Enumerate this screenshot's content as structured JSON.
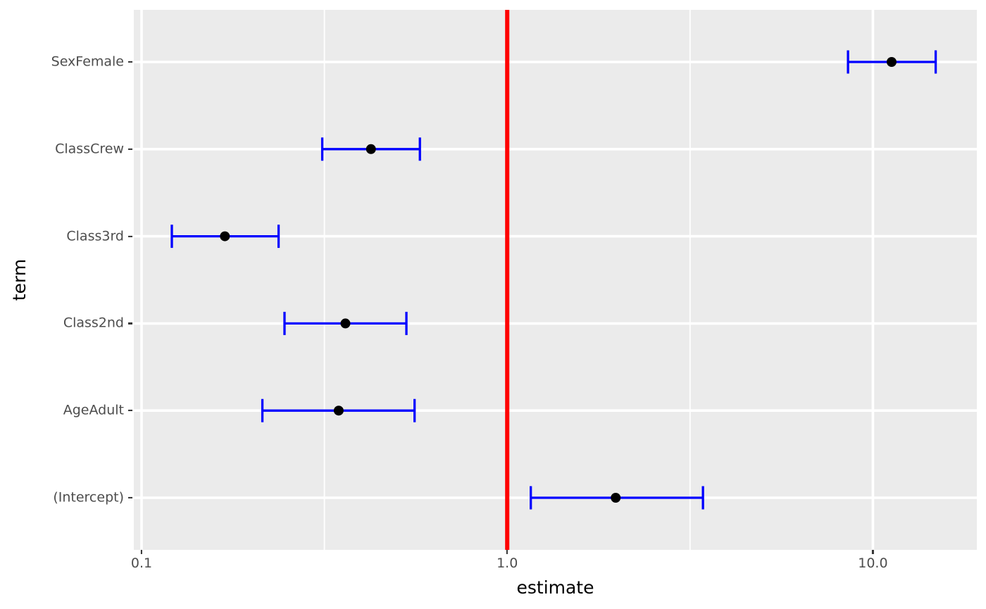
{
  "chart_data": {
    "type": "scatter",
    "subtype": "forest-plot-horizontal-errorbars",
    "title": "",
    "xlabel": "estimate",
    "ylabel": "term",
    "x_scale": "log10",
    "xlim": [
      0.095,
      19.2
    ],
    "x_ticks": [
      0.1,
      1.0,
      10.0
    ],
    "x_tick_labels": [
      "0.1",
      "1.0",
      "10.0"
    ],
    "x_minor_gridlines": [
      0.3162,
      3.1623
    ],
    "grid": "white major gridlines on grey panel; horizontal gridline per category; vertical minor gridlines at log midpoints",
    "legend_position": "none",
    "reference_line_x": 1.0,
    "categories": [
      "SexFemale",
      "ClassCrew",
      "Class3rd",
      "Class2nd",
      "AgeAdult",
      "(Intercept)"
    ],
    "terms": [
      {
        "label": "SexFemale",
        "estimate": 11.25,
        "conf_low": 8.55,
        "conf_high": 14.85
      },
      {
        "label": "ClassCrew",
        "estimate": 0.424,
        "conf_low": 0.312,
        "conf_high": 0.577
      },
      {
        "label": "Class3rd",
        "estimate": 0.169,
        "conf_low": 0.121,
        "conf_high": 0.237
      },
      {
        "label": "Class2nd",
        "estimate": 0.361,
        "conf_low": 0.246,
        "conf_high": 0.53
      },
      {
        "label": "AgeAdult",
        "estimate": 0.346,
        "conf_low": 0.214,
        "conf_high": 0.558
      },
      {
        "label": "(Intercept)",
        "estimate": 1.98,
        "conf_low": 1.16,
        "conf_high": 3.43
      }
    ],
    "colors": {
      "error_bar": "#0000FF",
      "point": "#000000",
      "reference_line": "#FF0000",
      "panel_background": "#EBEBEB",
      "gridline": "#FFFFFF",
      "tick_label": "#4D4D4D",
      "axis_title": "#000000",
      "tick_mark": "#333333"
    }
  }
}
